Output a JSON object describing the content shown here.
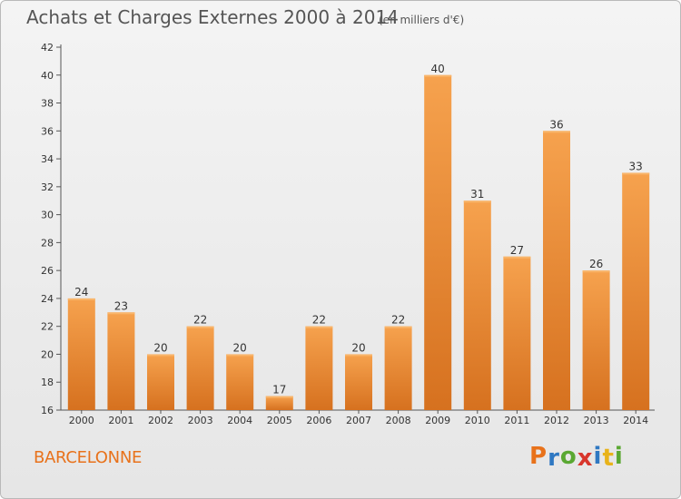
{
  "header": {
    "title": "Achats et Charges Externes 2000 à 2014",
    "subtitle": "(en milliers d'€)"
  },
  "footer": {
    "place": "BARCELONNE",
    "logo_letters": [
      "P",
      "r",
      "o",
      "x",
      "i",
      "t",
      "i"
    ],
    "logo_colors": [
      "#e8721b",
      "#2f78c2",
      "#5aa832",
      "#d8362c",
      "#2f78c2",
      "#e8b31b",
      "#5aa832"
    ]
  },
  "colors": {
    "bar_top": "#f6a24e",
    "bar_bottom": "#d6711f",
    "axis": "#555555",
    "grid": "#cfcfcf"
  },
  "chart_data": {
    "type": "bar",
    "title": "Achats et Charges Externes 2000 à 2014",
    "xlabel": "",
    "ylabel": "",
    "categories": [
      "2000",
      "2001",
      "2002",
      "2003",
      "2004",
      "2005",
      "2006",
      "2007",
      "2008",
      "2009",
      "2010",
      "2011",
      "2012",
      "2013",
      "2014"
    ],
    "values": [
      24,
      23,
      20,
      22,
      20,
      17,
      22,
      20,
      22,
      40,
      31,
      27,
      36,
      26,
      33
    ],
    "ylim": [
      16,
      42
    ],
    "yticks": [
      16,
      18,
      20,
      22,
      24,
      26,
      28,
      30,
      32,
      34,
      36,
      38,
      40,
      42
    ],
    "grid": false
  }
}
